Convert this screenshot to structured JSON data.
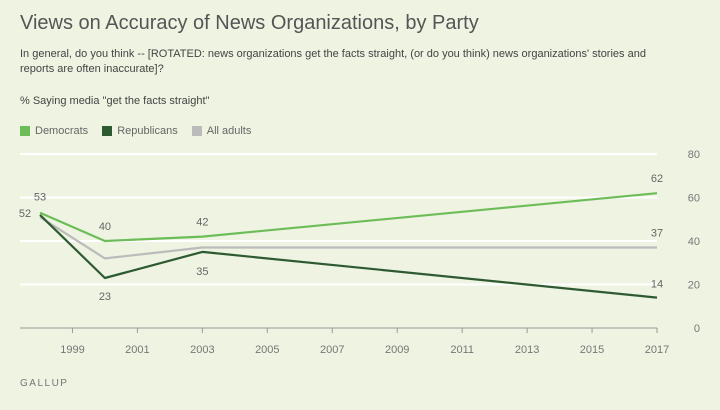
{
  "title": "Views on Accuracy of News Organizations, by Party",
  "subtitle": "In general, do you think -- [ROTATED: news organizations get the facts straight, (or do you think) news organizations' stories and reports are often inaccurate]?",
  "measure": "% Saying media \"get the facts straight\"",
  "source": "GALLUP",
  "chart_data": {
    "type": "line",
    "title": "Views on Accuracy of News Organizations, by Party",
    "ylabel": "",
    "xlabel": "",
    "ylim": [
      0,
      80
    ],
    "xlim": [
      1998,
      2017
    ],
    "y_ticks": [
      0,
      20,
      40,
      60,
      80
    ],
    "x_ticks": [
      1999,
      2001,
      2003,
      2005,
      2007,
      2009,
      2011,
      2013,
      2015,
      2017
    ],
    "grid": true,
    "legend_position": "top-left",
    "series": [
      {
        "name": "Democrats",
        "color": "#6cbd57",
        "x": [
          1998,
          2000,
          2003,
          2017
        ],
        "values": [
          53,
          40,
          42,
          62
        ],
        "labels": [
          "53",
          "40",
          "42",
          "62"
        ]
      },
      {
        "name": "Republicans",
        "color": "#2e5a31",
        "x": [
          1998,
          2000,
          2003,
          2017
        ],
        "values": [
          52,
          23,
          35,
          14
        ],
        "labels": [
          "52",
          "23",
          "35",
          "14"
        ]
      },
      {
        "name": "All adults",
        "color": "#bbbbbb",
        "x": [
          1998,
          2000,
          2003,
          2017
        ],
        "values": [
          51,
          32,
          37,
          37
        ],
        "labels": [
          "",
          "",
          "",
          "37"
        ]
      }
    ]
  }
}
